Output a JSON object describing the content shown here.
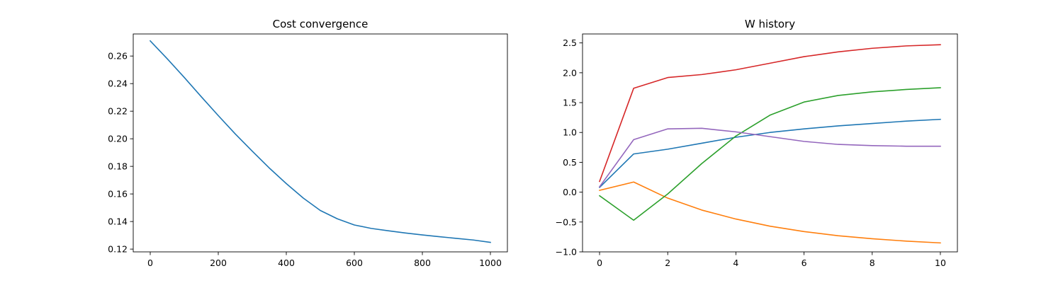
{
  "chart_data": [
    {
      "type": "line",
      "title": "Cost convergence",
      "xlabel": "",
      "ylabel": "",
      "xlim": [
        -50,
        1050
      ],
      "ylim": [
        0.118,
        0.276
      ],
      "xticks": [
        0,
        200,
        400,
        600,
        800,
        1000
      ],
      "yticks": [
        0.12,
        0.14,
        0.16,
        0.18,
        0.2,
        0.22,
        0.24,
        0.26
      ],
      "xtick_labels": [
        "0",
        "200",
        "400",
        "600",
        "800",
        "1000"
      ],
      "ytick_labels": [
        "0.12",
        "0.14",
        "0.16",
        "0.18",
        "0.20",
        "0.22",
        "0.24",
        "0.26"
      ],
      "grid": false,
      "series": [
        {
          "color": "#1f77b4",
          "x": [
            0,
            50,
            100,
            150,
            200,
            250,
            300,
            350,
            400,
            450,
            500,
            550,
            600,
            650,
            700,
            750,
            800,
            850,
            900,
            950,
            1000
          ],
          "y": [
            0.271,
            0.258,
            0.2445,
            0.2305,
            0.2168,
            0.2035,
            0.191,
            0.1788,
            0.1675,
            0.157,
            0.148,
            0.142,
            0.1375,
            0.135,
            0.1333,
            0.1317,
            0.1303,
            0.129,
            0.1278,
            0.1266,
            0.1249
          ]
        }
      ]
    },
    {
      "type": "line",
      "title": "W history",
      "xlabel": "",
      "ylabel": "",
      "xlim": [
        -0.5,
        10.5
      ],
      "ylim": [
        -1.0,
        2.65
      ],
      "xticks": [
        0,
        2,
        4,
        6,
        8,
        10
      ],
      "yticks": [
        -1.0,
        -0.5,
        0.0,
        0.5,
        1.0,
        1.5,
        2.0,
        2.5
      ],
      "xtick_labels": [
        "0",
        "2",
        "4",
        "6",
        "8",
        "10"
      ],
      "ytick_labels": [
        "−1.0",
        "−0.5",
        "0.0",
        "0.5",
        "1.0",
        "1.5",
        "2.0",
        "2.5"
      ],
      "grid": false,
      "x": [
        0,
        1,
        2,
        3,
        4,
        5,
        6,
        7,
        8,
        9,
        10
      ],
      "series": [
        {
          "color": "#1f77b4",
          "values": [
            0.08,
            0.64,
            0.72,
            0.82,
            0.92,
            1.0,
            1.06,
            1.11,
            1.15,
            1.19,
            1.22
          ]
        },
        {
          "color": "#ff7f0e",
          "values": [
            0.03,
            0.17,
            -0.1,
            -0.3,
            -0.45,
            -0.57,
            -0.66,
            -0.73,
            -0.78,
            -0.82,
            -0.85
          ]
        },
        {
          "color": "#2ca02c",
          "values": [
            -0.06,
            -0.47,
            -0.03,
            0.48,
            0.94,
            1.29,
            1.51,
            1.62,
            1.68,
            1.72,
            1.75
          ]
        },
        {
          "color": "#d62728",
          "values": [
            0.18,
            1.74,
            1.92,
            1.97,
            2.05,
            2.16,
            2.27,
            2.35,
            2.41,
            2.45,
            2.47
          ]
        },
        {
          "color": "#9467bd",
          "values": [
            0.09,
            0.88,
            1.06,
            1.07,
            1.01,
            0.93,
            0.85,
            0.8,
            0.78,
            0.77,
            0.77
          ]
        }
      ]
    }
  ]
}
